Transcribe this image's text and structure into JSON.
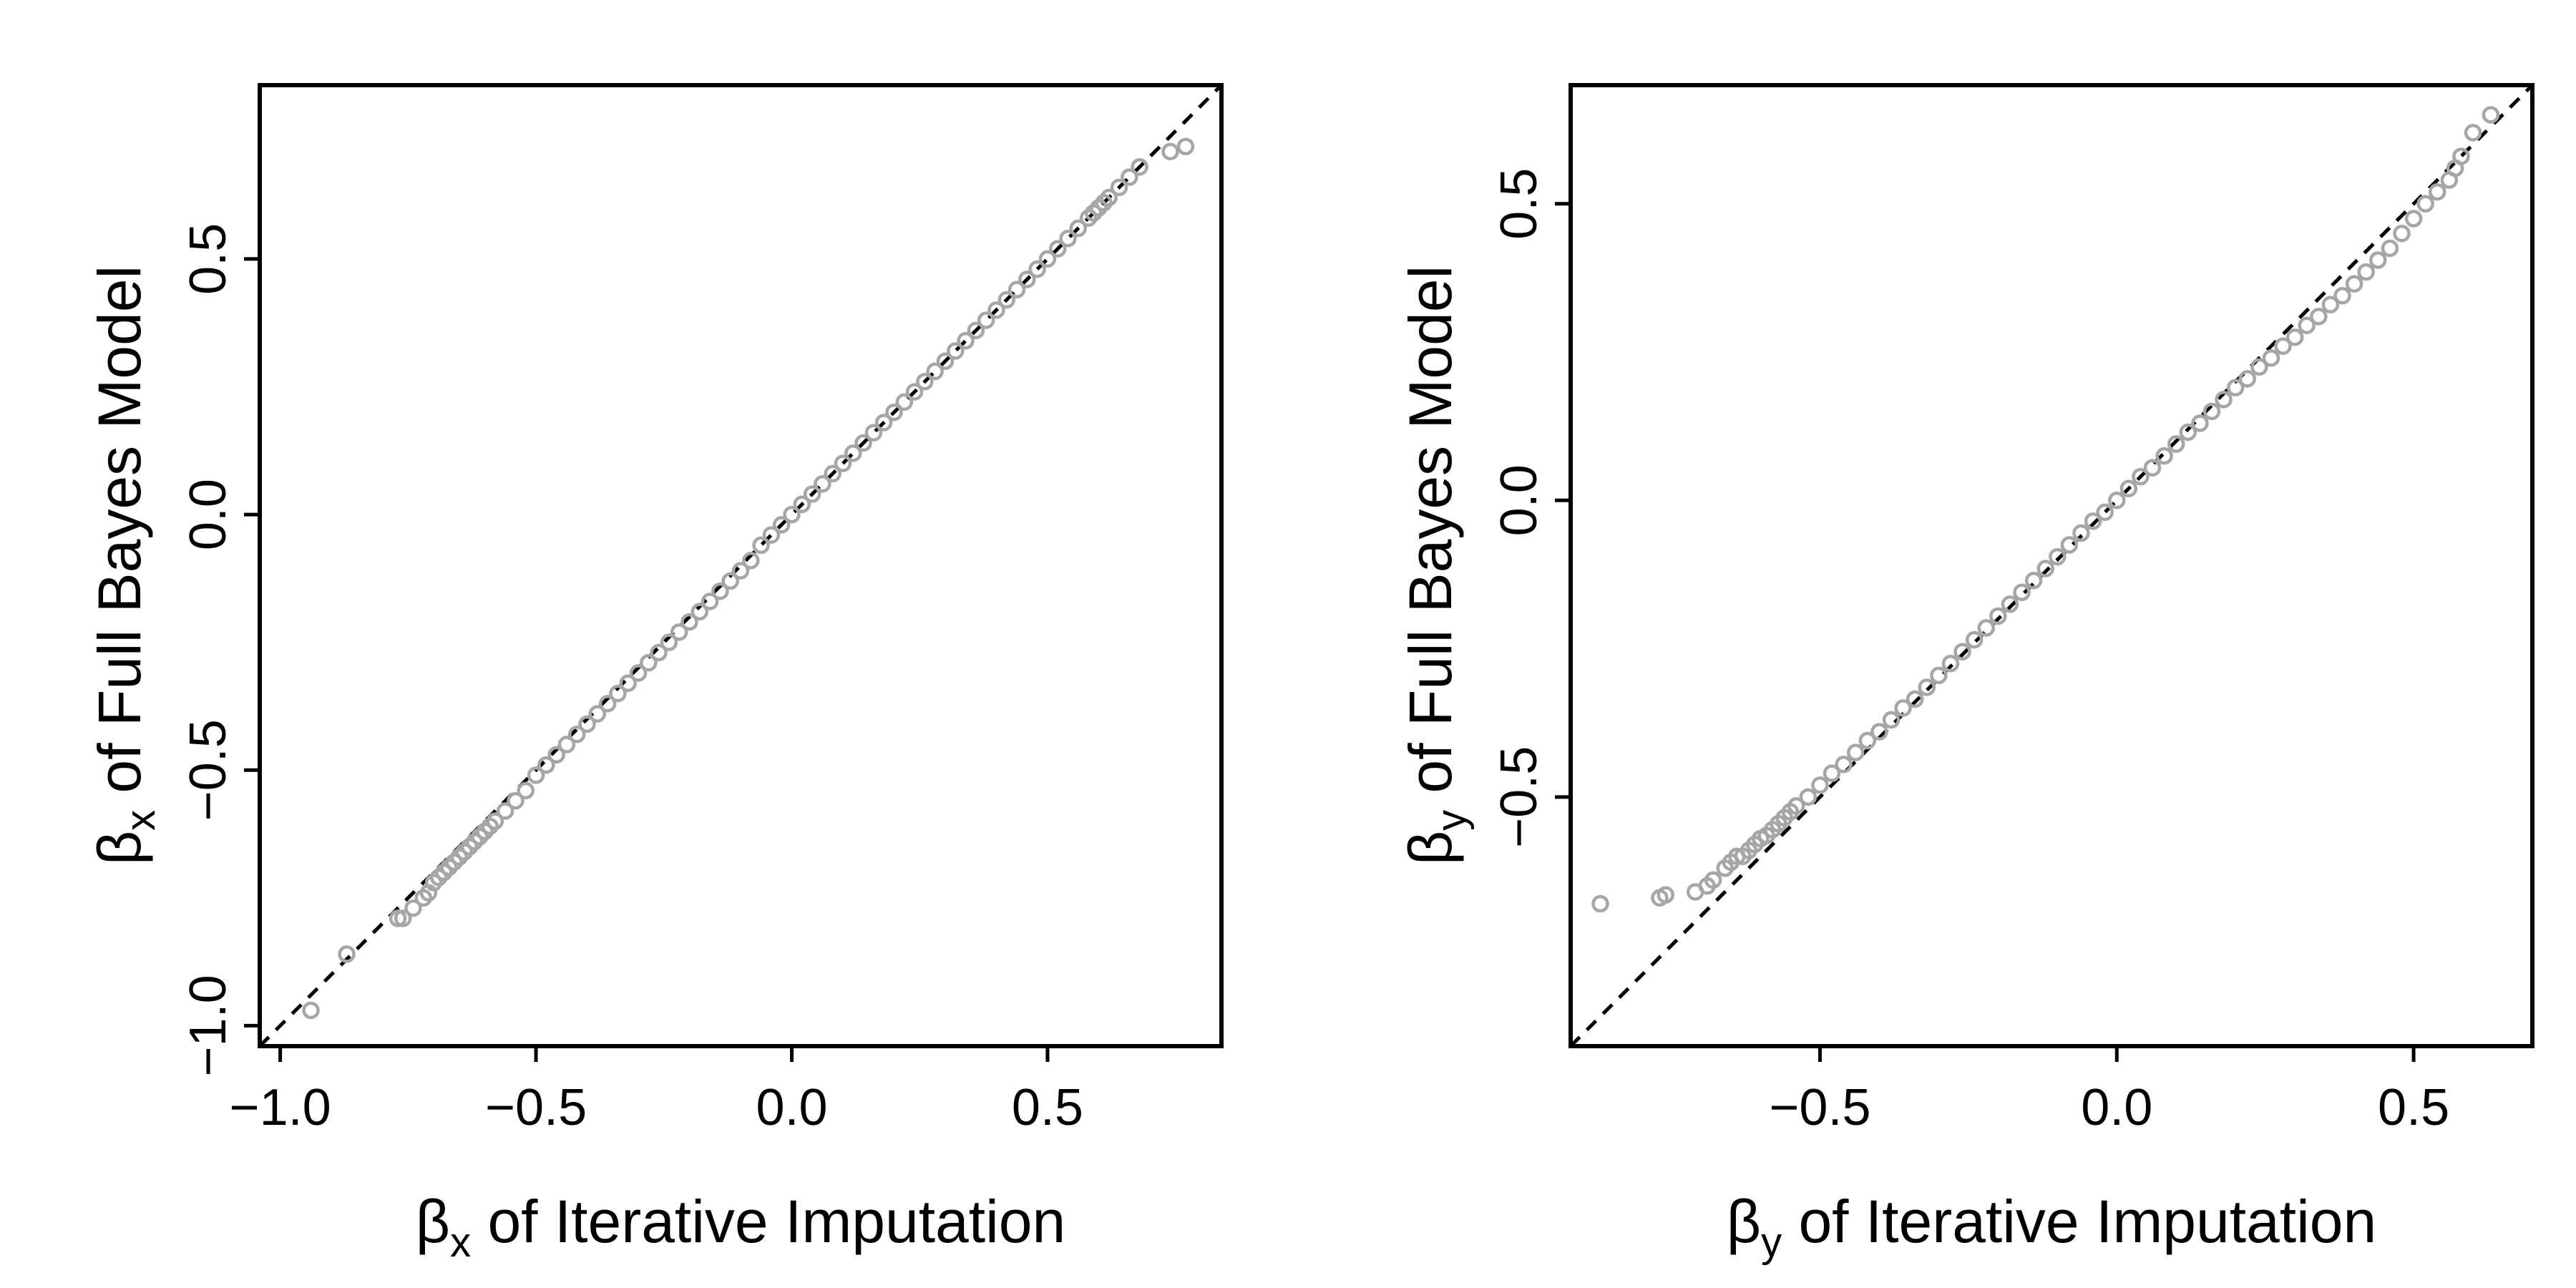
{
  "chart_data": [
    {
      "type": "scatter",
      "xlabel_symbol": "β",
      "xlabel_sub": "x",
      "xlabel_rest": " of Iterative Imputation",
      "ylabel_symbol": "β",
      "ylabel_sub": "x",
      "ylabel_rest": " of Full Bayes Model",
      "xlim": [
        -1.04,
        0.84
      ],
      "ylim": [
        -1.04,
        0.84
      ],
      "xticks": [
        -1.0,
        -0.5,
        0.0,
        0.5
      ],
      "xtick_labels": [
        "−1.0",
        "−0.5",
        "0.0",
        "0.5"
      ],
      "yticks": [
        -1.0,
        -0.5,
        0.0,
        0.5
      ],
      "ytick_labels": [
        "−1.0",
        "−0.5",
        "0.0",
        "0.5"
      ],
      "grid": false,
      "reference_line": "y = x (dashed)",
      "point_color": "#a6a6a6",
      "series": [
        {
          "x": [
            -0.94,
            -0.87,
            -0.77,
            -0.76,
            -0.74,
            -0.72,
            -0.71,
            -0.7,
            -0.69,
            -0.68,
            -0.67,
            -0.66,
            -0.65,
            -0.64,
            -0.63,
            -0.62,
            -0.61,
            -0.6,
            -0.59,
            -0.58,
            -0.56,
            -0.54,
            -0.52,
            -0.5,
            -0.48,
            -0.46,
            -0.44,
            -0.42,
            -0.4,
            -0.38,
            -0.36,
            -0.34,
            -0.32,
            -0.3,
            -0.28,
            -0.26,
            -0.24,
            -0.22,
            -0.2,
            -0.18,
            -0.16,
            -0.14,
            -0.12,
            -0.1,
            -0.08,
            -0.06,
            -0.04,
            -0.02,
            0.0,
            0.02,
            0.04,
            0.06,
            0.08,
            0.1,
            0.12,
            0.14,
            0.16,
            0.18,
            0.2,
            0.22,
            0.24,
            0.26,
            0.28,
            0.3,
            0.32,
            0.34,
            0.36,
            0.38,
            0.4,
            0.42,
            0.44,
            0.46,
            0.48,
            0.5,
            0.52,
            0.54,
            0.56,
            0.58,
            0.59,
            0.6,
            0.61,
            0.62,
            0.64,
            0.66,
            0.68,
            0.74,
            0.77
          ],
          "y": [
            -0.97,
            -0.86,
            -0.79,
            -0.79,
            -0.77,
            -0.75,
            -0.74,
            -0.72,
            -0.71,
            -0.7,
            -0.69,
            -0.68,
            -0.67,
            -0.66,
            -0.65,
            -0.64,
            -0.63,
            -0.62,
            -0.61,
            -0.6,
            -0.58,
            -0.56,
            -0.54,
            -0.51,
            -0.49,
            -0.47,
            -0.45,
            -0.43,
            -0.41,
            -0.39,
            -0.37,
            -0.35,
            -0.33,
            -0.31,
            -0.29,
            -0.27,
            -0.25,
            -0.23,
            -0.21,
            -0.19,
            -0.17,
            -0.15,
            -0.13,
            -0.11,
            -0.09,
            -0.06,
            -0.04,
            -0.02,
            0.0,
            0.02,
            0.04,
            0.06,
            0.08,
            0.1,
            0.12,
            0.14,
            0.16,
            0.18,
            0.2,
            0.22,
            0.24,
            0.26,
            0.28,
            0.3,
            0.32,
            0.34,
            0.36,
            0.38,
            0.4,
            0.42,
            0.44,
            0.46,
            0.48,
            0.5,
            0.52,
            0.54,
            0.56,
            0.58,
            0.59,
            0.6,
            0.61,
            0.62,
            0.64,
            0.66,
            0.68,
            0.71,
            0.72
          ]
        }
      ]
    },
    {
      "type": "scatter",
      "xlabel_symbol": "β",
      "xlabel_sub": "y",
      "xlabel_rest": " of Iterative Imputation",
      "ylabel_symbol": "β",
      "ylabel_sub": "y",
      "ylabel_rest": " of Full Bayes Model",
      "xlim": [
        -0.92,
        0.7
      ],
      "ylim": [
        -0.92,
        0.7
      ],
      "xticks": [
        -0.5,
        0.0,
        0.5
      ],
      "xtick_labels": [
        "−0.5",
        "0.0",
        "0.5"
      ],
      "yticks": [
        -0.5,
        0.0,
        0.5
      ],
      "ytick_labels": [
        "−0.5",
        "0.0",
        "0.5"
      ],
      "grid": false,
      "reference_line": "y = x (dashed)",
      "point_color": "#a6a6a6",
      "series": [
        {
          "x": [
            -0.87,
            -0.77,
            -0.76,
            -0.71,
            -0.69,
            -0.68,
            -0.66,
            -0.65,
            -0.64,
            -0.63,
            -0.62,
            -0.61,
            -0.6,
            -0.59,
            -0.58,
            -0.57,
            -0.56,
            -0.55,
            -0.54,
            -0.52,
            -0.5,
            -0.48,
            -0.46,
            -0.44,
            -0.42,
            -0.4,
            -0.38,
            -0.36,
            -0.34,
            -0.32,
            -0.3,
            -0.28,
            -0.26,
            -0.24,
            -0.22,
            -0.2,
            -0.18,
            -0.16,
            -0.14,
            -0.12,
            -0.1,
            -0.08,
            -0.06,
            -0.04,
            -0.02,
            0.0,
            0.02,
            0.04,
            0.06,
            0.08,
            0.1,
            0.12,
            0.14,
            0.16,
            0.18,
            0.2,
            0.22,
            0.24,
            0.26,
            0.28,
            0.3,
            0.32,
            0.34,
            0.36,
            0.38,
            0.4,
            0.42,
            0.44,
            0.46,
            0.48,
            0.5,
            0.52,
            0.54,
            0.56,
            0.57,
            0.58,
            0.6,
            0.63
          ],
          "y": [
            -0.68,
            -0.67,
            -0.665,
            -0.66,
            -0.65,
            -0.64,
            -0.62,
            -0.61,
            -0.6,
            -0.6,
            -0.59,
            -0.58,
            -0.57,
            -0.565,
            -0.555,
            -0.545,
            -0.535,
            -0.525,
            -0.515,
            -0.5,
            -0.48,
            -0.46,
            -0.445,
            -0.425,
            -0.405,
            -0.39,
            -0.37,
            -0.35,
            -0.335,
            -0.315,
            -0.295,
            -0.275,
            -0.255,
            -0.235,
            -0.215,
            -0.195,
            -0.175,
            -0.155,
            -0.135,
            -0.115,
            -0.095,
            -0.075,
            -0.055,
            -0.035,
            -0.02,
            0.0,
            0.02,
            0.04,
            0.055,
            0.075,
            0.095,
            0.115,
            0.13,
            0.15,
            0.17,
            0.19,
            0.205,
            0.225,
            0.24,
            0.26,
            0.275,
            0.295,
            0.31,
            0.33,
            0.345,
            0.365,
            0.385,
            0.405,
            0.425,
            0.45,
            0.475,
            0.5,
            0.52,
            0.54,
            0.56,
            0.58,
            0.62,
            0.65
          ]
        }
      ]
    }
  ]
}
